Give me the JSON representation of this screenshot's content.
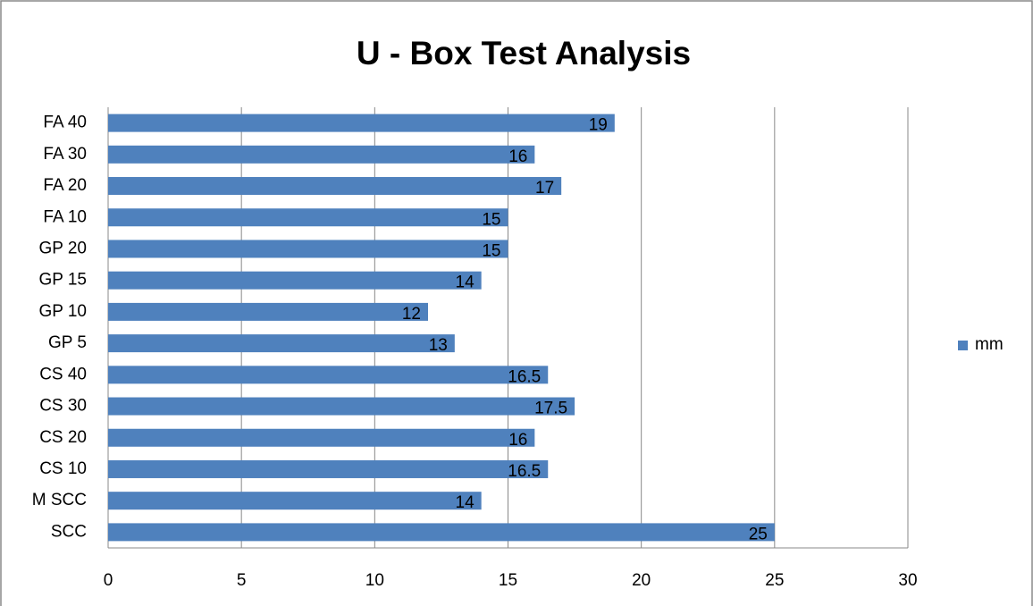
{
  "chart_data": {
    "type": "barh",
    "title": "U - Box Test Analysis",
    "categories": [
      "FA 40",
      "FA 30",
      "FA 20",
      "FA 10",
      "GP 20",
      "GP 15",
      "GP 10",
      "GP 5",
      "CS 40",
      "CS 30",
      "CS 20",
      "CS 10",
      "M SCC",
      "SCC"
    ],
    "series": [
      {
        "name": "mm",
        "color": "#4f81bd",
        "values": [
          19,
          16,
          17,
          15,
          15,
          14,
          12,
          13,
          16.5,
          17.5,
          16,
          16.5,
          14,
          25
        ]
      }
    ],
    "xlim": [
      0,
      30
    ],
    "xticks": [
      0,
      5,
      10,
      15,
      20,
      25,
      30
    ],
    "grid": true,
    "legend": "right"
  }
}
